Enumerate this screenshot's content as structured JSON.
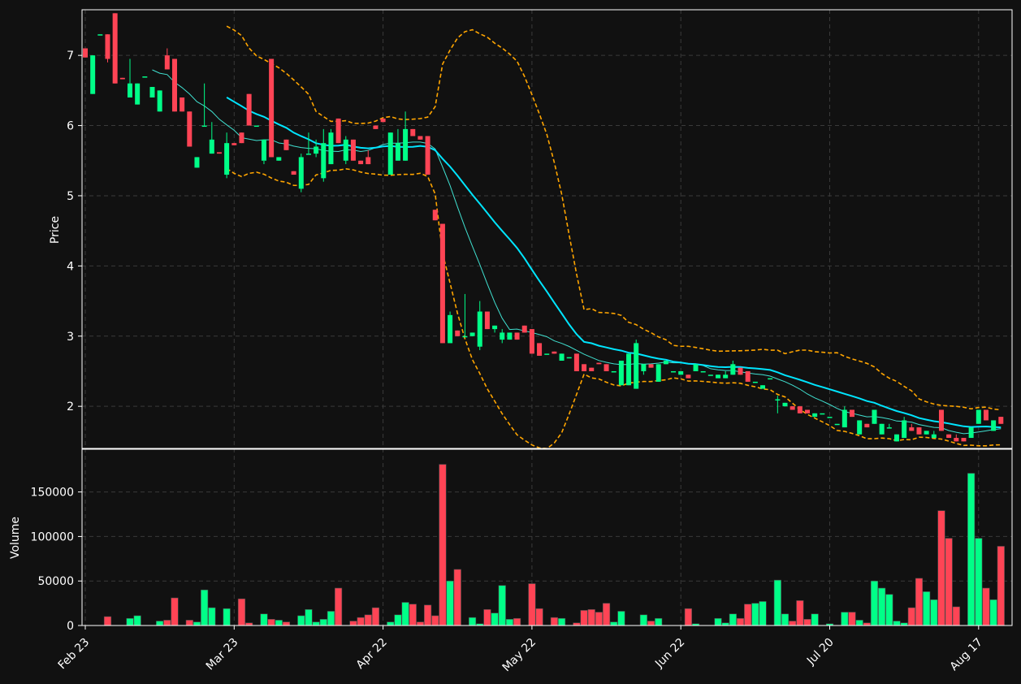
{
  "chart_data": {
    "type": "candlestick",
    "theme": {
      "background": "#111111",
      "up_color": "#00ff88",
      "down_color": "#ff4455",
      "grid": "dashed"
    },
    "price_panel": {
      "ylabel": "Price",
      "ylim": [
        1.4,
        7.65
      ],
      "yticks": [
        2,
        3,
        4,
        5,
        6,
        7
      ],
      "overlays": [
        {
          "kind": "moving-average-long",
          "color": "#00e5ff",
          "style": "solid"
        },
        {
          "kind": "moving-average-short",
          "color": "#40e0d0",
          "style": "solid"
        },
        {
          "kind": "bollinger-bands",
          "color": "#ffa500",
          "style": "dashed"
        }
      ]
    },
    "volume_panel": {
      "ylabel": "Volume",
      "ylim": [
        0,
        198000
      ],
      "yticks": [
        0,
        50000,
        100000,
        150000
      ]
    },
    "x_tick_labels": [
      "Feb 23",
      "Mar 23",
      "Apr 22",
      "May 22",
      "Jun 22",
      "Jul 20",
      "Aug 17"
    ],
    "x_tick_bars": [
      0,
      20,
      40,
      60,
      80,
      100,
      120
    ],
    "bars": [
      [
        7.1,
        7.1,
        6.97,
        6.97,
        0
      ],
      [
        6.45,
        7.0,
        6.45,
        7.0,
        0
      ],
      [
        7.3,
        7.3,
        7.3,
        7.3,
        0
      ],
      [
        7.3,
        7.3,
        6.9,
        6.95,
        10000
      ],
      [
        7.6,
        7.6,
        6.6,
        6.6,
        0
      ],
      [
        6.68,
        6.68,
        6.66,
        6.66,
        0
      ],
      [
        6.4,
        6.95,
        6.4,
        6.6,
        8000
      ],
      [
        6.3,
        6.6,
        6.3,
        6.6,
        11000
      ],
      [
        6.7,
        6.7,
        6.7,
        6.7,
        0
      ],
      [
        6.4,
        6.55,
        6.4,
        6.55,
        0
      ],
      [
        6.2,
        6.5,
        6.2,
        6.5,
        5000
      ],
      [
        7.0,
        7.1,
        6.8,
        6.8,
        6000
      ],
      [
        6.95,
        6.95,
        6.2,
        6.2,
        31000
      ],
      [
        6.4,
        6.4,
        6.2,
        6.2,
        0
      ],
      [
        6.2,
        6.2,
        5.7,
        5.7,
        6000
      ],
      [
        5.4,
        5.55,
        5.4,
        5.55,
        4000
      ],
      [
        6.0,
        6.6,
        6.0,
        6.0,
        40000
      ],
      [
        5.6,
        6.05,
        5.6,
        5.8,
        20000
      ],
      [
        5.62,
        5.62,
        5.6,
        5.6,
        0
      ],
      [
        5.3,
        5.9,
        5.25,
        5.75,
        19000
      ],
      [
        5.75,
        5.75,
        5.72,
        5.72,
        0
      ],
      [
        5.9,
        5.9,
        5.75,
        5.75,
        30000
      ],
      [
        6.45,
        6.45,
        6.0,
        6.0,
        3000
      ],
      [
        6.0,
        6.0,
        6.0,
        6.0,
        0
      ],
      [
        5.5,
        5.5,
        5.45,
        5.8,
        13000
      ],
      [
        6.95,
        6.95,
        5.55,
        5.55,
        7000
      ],
      [
        5.5,
        5.55,
        5.5,
        5.55,
        6000
      ],
      [
        5.8,
        5.8,
        5.65,
        5.65,
        4000
      ],
      [
        5.35,
        5.35,
        5.3,
        5.3,
        0
      ],
      [
        5.1,
        5.6,
        5.05,
        5.55,
        11000
      ],
      [
        5.6,
        5.9,
        5.6,
        5.6,
        18000
      ],
      [
        5.6,
        5.8,
        5.55,
        5.7,
        4000
      ],
      [
        5.25,
        5.95,
        5.2,
        5.75,
        7000
      ],
      [
        5.45,
        5.95,
        5.45,
        5.9,
        16000
      ],
      [
        6.1,
        6.1,
        5.75,
        5.75,
        42000
      ],
      [
        5.5,
        5.85,
        5.45,
        5.8,
        0
      ],
      [
        5.8,
        5.8,
        5.5,
        5.5,
        5000
      ],
      [
        5.5,
        5.5,
        5.45,
        5.45,
        9000
      ],
      [
        5.55,
        5.65,
        5.45,
        5.45,
        12000
      ],
      [
        6.0,
        6.0,
        5.95,
        5.95,
        20000
      ],
      [
        6.1,
        6.1,
        6.05,
        6.05,
        0
      ],
      [
        5.3,
        5.9,
        5.3,
        5.9,
        4000
      ],
      [
        5.5,
        5.95,
        5.5,
        5.75,
        12000
      ],
      [
        5.5,
        6.2,
        5.5,
        5.95,
        26000
      ],
      [
        5.95,
        5.95,
        5.85,
        5.85,
        24000
      ],
      [
        5.85,
        5.85,
        5.8,
        5.8,
        4000
      ],
      [
        5.85,
        5.85,
        5.3,
        5.3,
        23000
      ],
      [
        4.8,
        4.8,
        4.65,
        4.65,
        11000
      ],
      [
        4.6,
        4.6,
        2.9,
        2.9,
        181000
      ],
      [
        2.9,
        3.35,
        2.9,
        3.3,
        50000
      ],
      [
        3.08,
        3.08,
        3.0,
        3.0,
        63000
      ],
      [
        3.0,
        3.6,
        3.0,
        3.0,
        0
      ],
      [
        3.0,
        3.05,
        3.0,
        3.05,
        9000
      ],
      [
        2.85,
        3.5,
        2.8,
        3.35,
        2000
      ],
      [
        3.35,
        3.35,
        3.1,
        3.1,
        18000
      ],
      [
        3.1,
        3.15,
        3.05,
        3.15,
        14000
      ],
      [
        2.95,
        3.1,
        2.9,
        3.05,
        45000
      ],
      [
        2.95,
        3.05,
        2.95,
        3.05,
        7000
      ],
      [
        3.05,
        3.05,
        2.95,
        2.95,
        8000
      ],
      [
        3.15,
        3.15,
        3.05,
        3.05,
        0
      ],
      [
        3.1,
        3.1,
        2.75,
        2.75,
        47000
      ],
      [
        2.9,
        2.9,
        2.72,
        2.72,
        19000
      ],
      [
        2.75,
        2.75,
        2.75,
        2.75,
        0
      ],
      [
        2.78,
        2.78,
        2.75,
        2.75,
        9000
      ],
      [
        2.65,
        2.75,
        2.65,
        2.75,
        8000
      ],
      [
        2.7,
        2.7,
        2.7,
        2.7,
        0
      ],
      [
        2.75,
        2.75,
        2.5,
        2.5,
        3000
      ],
      [
        2.6,
        2.6,
        2.5,
        2.5,
        17000
      ],
      [
        2.55,
        2.55,
        2.5,
        2.5,
        18000
      ],
      [
        2.62,
        2.62,
        2.6,
        2.6,
        15000
      ],
      [
        2.6,
        2.6,
        2.5,
        2.5,
        25000
      ],
      [
        2.5,
        2.5,
        2.5,
        2.5,
        4000
      ],
      [
        2.3,
        2.65,
        2.3,
        2.65,
        16000
      ],
      [
        2.3,
        2.75,
        2.3,
        2.75,
        0
      ],
      [
        2.25,
        2.95,
        2.25,
        2.9,
        0
      ],
      [
        2.5,
        2.6,
        2.45,
        2.6,
        12000
      ],
      [
        2.6,
        2.6,
        2.55,
        2.55,
        5000
      ],
      [
        2.35,
        2.6,
        2.35,
        2.6,
        8000
      ],
      [
        2.6,
        2.65,
        2.6,
        2.65,
        0
      ],
      [
        2.5,
        2.5,
        2.5,
        2.5,
        0
      ],
      [
        2.45,
        2.5,
        2.45,
        2.5,
        0
      ],
      [
        2.45,
        2.45,
        2.4,
        2.4,
        19000
      ],
      [
        2.5,
        2.6,
        2.5,
        2.6,
        2000
      ],
      [
        2.5,
        2.5,
        2.5,
        2.5,
        0
      ],
      [
        2.45,
        2.45,
        2.45,
        2.45,
        0
      ],
      [
        2.4,
        2.45,
        2.4,
        2.45,
        8000
      ],
      [
        2.4,
        2.5,
        2.4,
        2.45,
        3000
      ],
      [
        2.45,
        2.65,
        2.45,
        2.6,
        13000
      ],
      [
        2.55,
        2.55,
        2.45,
        2.45,
        8000
      ],
      [
        2.5,
        2.5,
        2.35,
        2.35,
        24000
      ],
      [
        2.35,
        2.35,
        2.35,
        2.35,
        25000
      ],
      [
        2.25,
        2.3,
        2.25,
        2.3,
        27000
      ],
      [
        2.4,
        2.4,
        2.4,
        2.4,
        0
      ],
      [
        2.1,
        2.15,
        1.9,
        2.1,
        51000
      ],
      [
        2.0,
        2.05,
        2.0,
        2.05,
        13000
      ],
      [
        2.0,
        2.0,
        1.95,
        1.95,
        5000
      ],
      [
        2.0,
        2.0,
        1.9,
        1.9,
        28000
      ],
      [
        1.95,
        1.95,
        1.9,
        1.9,
        7000
      ],
      [
        1.85,
        1.9,
        1.85,
        1.9,
        13000
      ],
      [
        1.9,
        1.9,
        1.9,
        1.9,
        0
      ],
      [
        1.85,
        1.85,
        1.85,
        1.85,
        2000
      ],
      [
        1.75,
        1.75,
        1.75,
        1.75,
        0
      ],
      [
        1.7,
        2.0,
        1.7,
        1.95,
        15000
      ],
      [
        1.95,
        1.95,
        1.85,
        1.85,
        15000
      ],
      [
        1.6,
        1.8,
        1.6,
        1.8,
        6000
      ],
      [
        1.75,
        1.75,
        1.7,
        1.7,
        3000
      ],
      [
        1.75,
        1.95,
        1.75,
        1.95,
        50000
      ],
      [
        1.6,
        1.75,
        1.6,
        1.75,
        42000
      ],
      [
        1.7,
        1.75,
        1.7,
        1.7,
        35000
      ],
      [
        1.5,
        1.6,
        1.5,
        1.6,
        5000
      ],
      [
        1.55,
        1.85,
        1.55,
        1.8,
        3000
      ],
      [
        1.7,
        1.75,
        1.65,
        1.65,
        20000
      ],
      [
        1.7,
        1.7,
        1.6,
        1.6,
        53000
      ],
      [
        1.6,
        1.65,
        1.6,
        1.65,
        38000
      ],
      [
        1.55,
        1.65,
        1.55,
        1.6,
        29000
      ],
      [
        1.95,
        1.95,
        1.65,
        1.65,
        129000
      ],
      [
        1.6,
        1.6,
        1.55,
        1.55,
        98000
      ],
      [
        1.55,
        1.6,
        1.5,
        1.5,
        21000
      ],
      [
        1.55,
        1.55,
        1.5,
        1.5,
        0
      ],
      [
        1.55,
        1.7,
        1.55,
        1.7,
        171000
      ],
      [
        1.75,
        1.95,
        1.75,
        1.95,
        98000
      ],
      [
        1.95,
        1.95,
        1.8,
        1.8,
        42000
      ],
      [
        1.65,
        1.8,
        1.65,
        1.8,
        29000
      ],
      [
        1.85,
        1.85,
        1.75,
        1.75,
        89000
      ]
    ]
  }
}
